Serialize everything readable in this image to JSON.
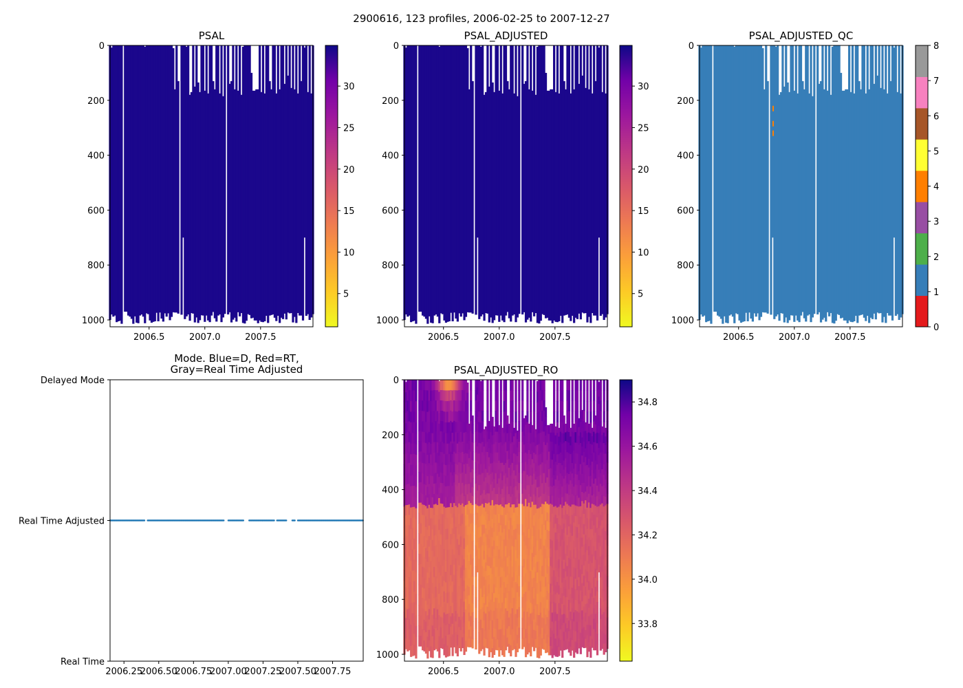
{
  "chart_data": {
    "suptitle": "2900616, 123 profiles, 2006-02-25 to 2007-12-27",
    "panels": [
      {
        "id": "psal",
        "type": "heatmap",
        "title": "PSAL",
        "xlim": [
          2006.15,
          2007.97
        ],
        "ylim": [
          1025,
          0
        ],
        "xticks": [
          2006.5,
          2007.0,
          2007.5
        ],
        "xtick_labels": [
          "2006.5",
          "2007.0",
          "2007.5"
        ],
        "yticks": [
          0,
          200,
          400,
          600,
          800,
          1000
        ],
        "ytick_labels": [
          "0",
          "200",
          "400",
          "600",
          "800",
          "1000"
        ],
        "colorbar": {
          "cmap": "plasma_r",
          "range": [
            1,
            34.9
          ],
          "ticks": [
            5,
            10,
            15,
            20,
            25,
            30
          ],
          "tick_labels": [
            "5",
            "10",
            "15",
            "20",
            "25",
            "30"
          ]
        }
      },
      {
        "id": "psal_adj",
        "type": "heatmap",
        "title": "PSAL_ADJUSTED",
        "xlim": [
          2006.15,
          2007.97
        ],
        "ylim": [
          1025,
          0
        ],
        "xticks": [
          2006.5,
          2007.0,
          2007.5
        ],
        "xtick_labels": [
          "2006.5",
          "2007.0",
          "2007.5"
        ],
        "yticks": [
          0,
          200,
          400,
          600,
          800,
          1000
        ],
        "ytick_labels": [
          "0",
          "200",
          "400",
          "600",
          "800",
          "1000"
        ],
        "colorbar": {
          "cmap": "plasma_r",
          "range": [
            1,
            34.9
          ],
          "ticks": [
            5,
            10,
            15,
            20,
            25,
            30
          ],
          "tick_labels": [
            "5",
            "10",
            "15",
            "20",
            "25",
            "30"
          ]
        }
      },
      {
        "id": "psal_qc",
        "type": "heatmap",
        "title": "PSAL_ADJUSTED_QC",
        "xlim": [
          2006.15,
          2007.97
        ],
        "ylim": [
          1025,
          0
        ],
        "xticks": [
          2006.5,
          2007.0,
          2007.5
        ],
        "xtick_labels": [
          "2006.5",
          "2007.0",
          "2007.5"
        ],
        "yticks": [
          0,
          200,
          400,
          600,
          800,
          1000
        ],
        "ytick_labels": [
          "0",
          "200",
          "400",
          "600",
          "800",
          "1000"
        ],
        "dominant_flag": 1,
        "flag4_depths": [
          230,
          285,
          320
        ],
        "flag4_time": 2006.81,
        "colorbar": {
          "type": "discrete",
          "range": [
            0,
            8
          ],
          "colors": [
            "#e41a1c",
            "#377eb8",
            "#4daf4a",
            "#984ea3",
            "#ff7f00",
            "#ffff33",
            "#a65628",
            "#f781bf",
            "#999999"
          ],
          "ticks": [
            0,
            1,
            2,
            3,
            4,
            5,
            6,
            7,
            8
          ],
          "tick_labels": [
            "0",
            "1",
            "2",
            "3",
            "4",
            "5",
            "6",
            "7",
            "8"
          ]
        }
      },
      {
        "id": "mode",
        "type": "scatter",
        "title": "Mode. Blue=D, Red=RT,\nGray=Real Time Adjusted",
        "title_lines": [
          "Mode. Blue=D, Red=RT,",
          "Gray=Real Time Adjusted"
        ],
        "xlim": [
          2006.15,
          2007.97
        ],
        "ylim": [
          0,
          2
        ],
        "xticks": [
          2006.25,
          2006.5,
          2006.75,
          2007.0,
          2007.25,
          2007.5,
          2007.75
        ],
        "xtick_labels": [
          "2006.25",
          "2006.50",
          "2006.75",
          "2007.00",
          "2007.25",
          "2007.50",
          "2007.75"
        ],
        "yticks": [
          0,
          1,
          2
        ],
        "ytick_labels": [
          "Real Time",
          "Real Time Adjusted",
          "Delayed Mode"
        ],
        "point_color": "#1f77b4",
        "y_value": 1,
        "point_ranges": [
          [
            2006.15,
            2006.4
          ],
          [
            2006.42,
            2006.97
          ],
          [
            2007.0,
            2007.11
          ],
          [
            2007.15,
            2007.33
          ],
          [
            2007.35,
            2007.42
          ],
          [
            2007.46,
            2007.48
          ],
          [
            2007.5,
            2007.97
          ]
        ],
        "point_step": 0.015
      },
      {
        "id": "psal_ro",
        "type": "heatmap",
        "title": "PSAL_ADJUSTED_RO",
        "xlim": [
          2006.15,
          2007.97
        ],
        "ylim": [
          1025,
          0
        ],
        "xticks": [
          2006.5,
          2007.0,
          2007.5
        ],
        "xtick_labels": [
          "2006.5",
          "2007.0",
          "2007.5"
        ],
        "yticks": [
          0,
          200,
          400,
          600,
          800,
          1000
        ],
        "ytick_labels": [
          "0",
          "200",
          "400",
          "600",
          "800",
          "1000"
        ],
        "colorbar": {
          "cmap": "plasma_r",
          "range": [
            33.63,
            34.9
          ],
          "ticks": [
            33.8,
            34.0,
            34.2,
            34.4,
            34.6,
            34.8
          ],
          "tick_labels": [
            "33.8",
            "34.0",
            "34.2",
            "34.4",
            "34.6",
            "34.8"
          ]
        }
      }
    ],
    "profiles": {
      "count": 123,
      "start": 2006.15,
      "end": 2007.97,
      "missing_columns": [
        2006.27,
        2006.78,
        2006.8,
        2007.2
      ],
      "top_gaps": [
        {
          "t": 2006.17,
          "d": 8
        },
        {
          "t": 2006.27,
          "d": 180
        },
        {
          "t": 2006.47,
          "d": 5
        },
        {
          "t": 2006.72,
          "d": 10
        },
        {
          "t": 2006.73,
          "d": 160
        },
        {
          "t": 2006.76,
          "d": 130
        },
        {
          "t": 2006.84,
          "d": 5
        },
        {
          "t": 2006.86,
          "d": 180
        },
        {
          "t": 2006.88,
          "d": 170
        },
        {
          "t": 2006.91,
          "d": 150
        },
        {
          "t": 2006.94,
          "d": 135
        },
        {
          "t": 2006.96,
          "d": 170
        },
        {
          "t": 2007.0,
          "d": 165
        },
        {
          "t": 2007.03,
          "d": 175
        },
        {
          "t": 2007.07,
          "d": 130
        },
        {
          "t": 2007.09,
          "d": 160
        },
        {
          "t": 2007.14,
          "d": 175
        },
        {
          "t": 2007.16,
          "d": 185
        },
        {
          "t": 2007.22,
          "d": 140
        },
        {
          "t": 2007.24,
          "d": 130
        },
        {
          "t": 2007.27,
          "d": 160
        },
        {
          "t": 2007.3,
          "d": 165
        },
        {
          "t": 2007.33,
          "d": 180
        },
        {
          "t": 2007.35,
          "d": 5
        },
        {
          "t": 2007.42,
          "d": 100
        },
        {
          "t": 2007.44,
          "d": 165
        },
        {
          "t": 2007.47,
          "d": 160
        },
        {
          "t": 2007.51,
          "d": 170
        },
        {
          "t": 2007.54,
          "d": 175
        },
        {
          "t": 2007.58,
          "d": 130
        },
        {
          "t": 2007.6,
          "d": 160
        },
        {
          "t": 2007.64,
          "d": 175
        },
        {
          "t": 2007.67,
          "d": 160
        },
        {
          "t": 2007.71,
          "d": 140
        },
        {
          "t": 2007.74,
          "d": 110
        },
        {
          "t": 2007.77,
          "d": 155
        },
        {
          "t": 2007.8,
          "d": 160
        },
        {
          "t": 2007.83,
          "d": 175
        },
        {
          "t": 2007.86,
          "d": 130
        },
        {
          "t": 2007.9,
          "d": 8
        },
        {
          "t": 2007.92,
          "d": 170
        },
        {
          "t": 2007.95,
          "d": 175
        }
      ],
      "bottom_gaps": [
        {
          "t": 2006.78,
          "d": 505
        },
        {
          "t": 2006.8,
          "d": 700
        },
        {
          "t": 2006.77,
          "d": 825
        },
        {
          "t": 2007.2,
          "d": 840
        },
        {
          "t": 2007.89,
          "d": 700
        }
      ]
    }
  }
}
